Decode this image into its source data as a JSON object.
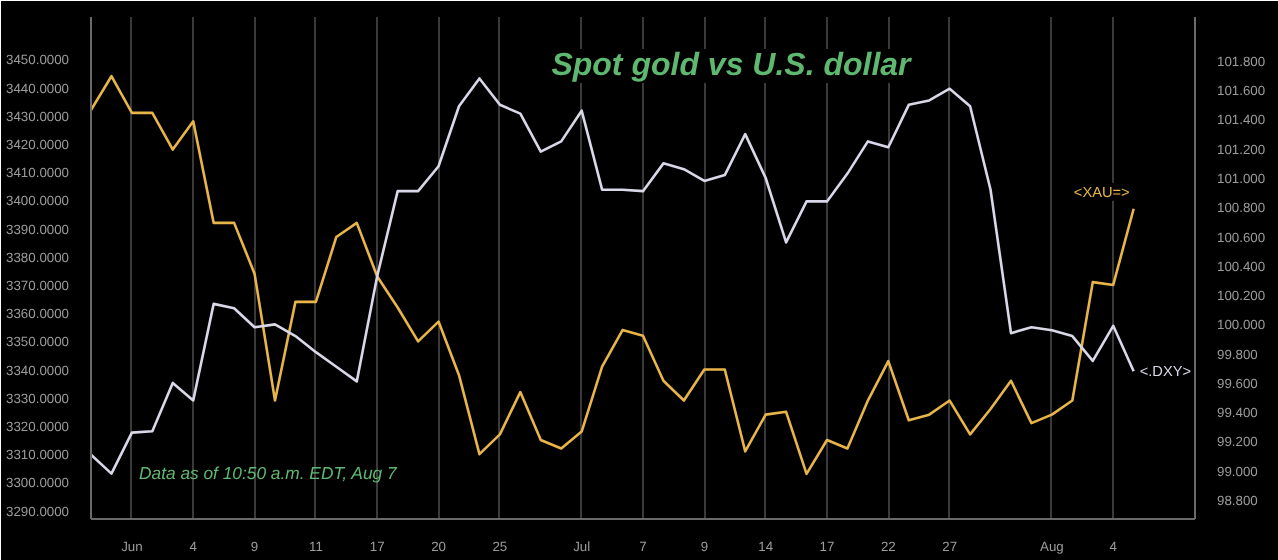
{
  "chart_data": {
    "type": "line",
    "title": "Spot gold vs U.S. dollar",
    "annotations": [
      "Data as of 10:50 a.m. EDT, Aug 7"
    ],
    "categories": [
      null,
      null,
      "Jun",
      null,
      null,
      "4",
      null,
      null,
      "9",
      null,
      null,
      "11",
      null,
      null,
      "17",
      null,
      null,
      "20",
      null,
      null,
      "25",
      null,
      null,
      null,
      "Jul",
      null,
      null,
      "7",
      null,
      null,
      "9",
      null,
      null,
      "14",
      null,
      null,
      "17",
      null,
      null,
      "22",
      null,
      null,
      "27",
      null,
      null,
      null,
      null,
      "Aug",
      null,
      null,
      "4",
      null
    ],
    "ylim": [
      3287,
      3465
    ],
    "yticks": [
      {
        "value": 3450,
        "label": "3450.0000"
      },
      {
        "value": 3440,
        "label": "3440.0000"
      },
      {
        "value": 3430,
        "label": "3430.0000"
      },
      {
        "value": 3420,
        "label": "3420.0000"
      },
      {
        "value": 3410,
        "label": "3410.0000"
      },
      {
        "value": 3400,
        "label": "3400.0000"
      },
      {
        "value": 3390,
        "label": "3390.0000"
      },
      {
        "value": 3380,
        "label": "3380.0000"
      },
      {
        "value": 3370,
        "label": "3370.0000"
      },
      {
        "value": 3360,
        "label": "3360.0000"
      },
      {
        "value": 3350,
        "label": "3350.0000"
      },
      {
        "value": 3340,
        "label": "3340.0000"
      },
      {
        "value": 3330,
        "label": "3330.0000"
      },
      {
        "value": 3320,
        "label": "3320.0000"
      },
      {
        "value": 3310,
        "label": "3310.0000"
      },
      {
        "value": 3300,
        "label": "3300.0000"
      },
      {
        "value": 3290,
        "label": "3290.0000"
      }
    ],
    "y2lim": [
      98.67,
      102.1
    ],
    "y2ticks": [
      {
        "value": 101.8,
        "label": "101.800"
      },
      {
        "value": 101.6,
        "label": "101.600"
      },
      {
        "value": 101.4,
        "label": "101.400"
      },
      {
        "value": 101.2,
        "label": "101.200"
      },
      {
        "value": 101.0,
        "label": "101.000"
      },
      {
        "value": 100.8,
        "label": "100.800"
      },
      {
        "value": 100.6,
        "label": "100.600"
      },
      {
        "value": 100.4,
        "label": "100.400"
      },
      {
        "value": 100.2,
        "label": "100.200"
      },
      {
        "value": 100.0,
        "label": "100.000"
      },
      {
        "value": 99.8,
        "label": "99.800"
      },
      {
        "value": 99.6,
        "label": "99.600"
      },
      {
        "value": 99.4,
        "label": "99.400"
      },
      {
        "value": 99.2,
        "label": "99.200"
      },
      {
        "value": 99.0,
        "label": "99.000"
      },
      {
        "value": 98.8,
        "label": "98.800"
      }
    ],
    "grid": "x",
    "legend": false,
    "marker": "none",
    "line_style": "solid",
    "series": [
      {
        "name": "<XAU=>",
        "color": "#e8b54a",
        "values": [
          3432,
          3444,
          3431,
          3431,
          3418,
          3428,
          3392,
          3392,
          3374,
          3329,
          3364,
          3364,
          3387,
          3392,
          3373,
          3362,
          3350,
          3357,
          3338,
          3310,
          3317,
          3332,
          3315,
          3312,
          3318,
          3341,
          3354,
          3352,
          3336,
          3329,
          3340,
          3340,
          3311,
          3324,
          3325,
          3303,
          3315,
          3312,
          3329,
          3343,
          3322,
          3324,
          3329,
          3317,
          3326,
          3336,
          3321,
          3324,
          3329,
          3371,
          3370,
          3397
        ]
      },
      {
        "name": "<.DXY>",
        "color": "#d8d8e8",
        "axis": "y2",
        "values": [
          99.11,
          98.98,
          99.26,
          99.27,
          99.6,
          99.48,
          100.14,
          100.11,
          99.98,
          100.0,
          99.92,
          99.81,
          99.71,
          99.61,
          100.33,
          100.91,
          100.91,
          101.08,
          101.49,
          101.68,
          101.5,
          101.44,
          101.18,
          101.25,
          101.46,
          100.92,
          100.92,
          100.91,
          101.1,
          101.06,
          100.98,
          101.02,
          101.3,
          101.0,
          100.56,
          100.84,
          100.84,
          101.03,
          101.25,
          101.21,
          101.5,
          101.53,
          101.61,
          101.49,
          100.92,
          99.94,
          99.98,
          99.96,
          99.92,
          99.75,
          99.99,
          99.68
        ]
      }
    ]
  }
}
